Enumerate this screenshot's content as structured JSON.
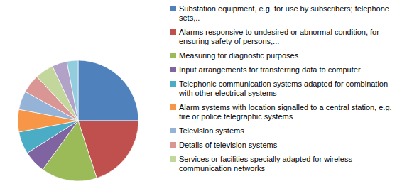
{
  "chart_data": {
    "type": "pie",
    "categories": [
      "Substation equipment, e.g. for use by subscribers; telephone sets,..",
      "Alarms responsive to undesired or abnormal condition, for ensuring safety of persons,...",
      "Measuring for diagnostic purposes",
      "Input arrangements for transferring data to  computer",
      "Telephonic communication systems adapted for combination with other electrical systems",
      "Alarm systems with location signalled to a central station, e.g. fire or police telegraphic systems",
      "Television systems",
      "Details of television systems",
      "Services or facilities specially adapted for wireless communication networks",
      null,
      null
    ],
    "values": [
      25,
      20,
      15,
      6,
      6,
      6,
      5,
      5,
      5,
      4,
      3
    ],
    "colors": [
      "#4F81BD",
      "#C0504D",
      "#9BBB59",
      "#8064A2",
      "#4BACC6",
      "#F79646",
      "#95B3D7",
      "#D99694",
      "#C3D69B",
      "#B3A2C7",
      "#93CDDD"
    ],
    "legend": "right"
  }
}
